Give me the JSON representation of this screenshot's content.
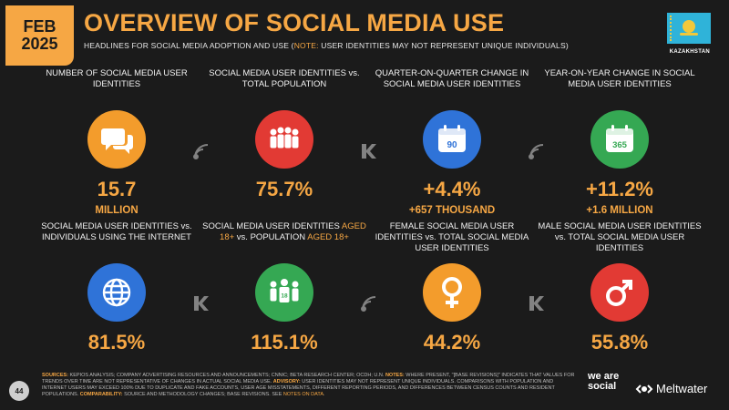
{
  "header": {
    "month": "FEB",
    "year": "2025",
    "title": "OVERVIEW OF SOCIAL MEDIA USE",
    "subtitle_main": "HEADLINES FOR SOCIAL MEDIA ADOPTION AND USE (",
    "subtitle_note": "NOTE:",
    "subtitle_rest": " USER IDENTITIES MAY NOT REPRESENT UNIQUE INDIVIDUALS)"
  },
  "country": {
    "label": "KAZAKHSTAN"
  },
  "stats": [
    {
      "label": "NUMBER OF SOCIAL MEDIA USER IDENTITIES",
      "value": "15.7",
      "sub": "MILLION",
      "icon": "chat-bubbles-icon",
      "color": "#f39c2c"
    },
    {
      "label": "SOCIAL MEDIA USER IDENTITIES vs. TOTAL POPULATION",
      "value": "75.7%",
      "sub": "",
      "icon": "people-group-icon",
      "color": "#e23a34"
    },
    {
      "label": "QUARTER-ON-QUARTER CHANGE IN SOCIAL MEDIA USER IDENTITIES",
      "value": "+4.4%",
      "sub": "+657 THOUSAND",
      "icon": "calendar-90-icon",
      "calendar_text": "90",
      "color": "#2f73d8"
    },
    {
      "label": "YEAR-ON-YEAR CHANGE IN SOCIAL MEDIA USER IDENTITIES",
      "value": "+11.2%",
      "sub": "+1.6 MILLION",
      "icon": "calendar-365-icon",
      "calendar_text": "365",
      "color": "#35a853"
    },
    {
      "label": "SOCIAL MEDIA USER IDENTITIES vs. INDIVIDUALS USING THE INTERNET",
      "value": "81.5%",
      "sub": "",
      "icon": "globe-icon",
      "color": "#2f73d8"
    },
    {
      "label_a": "SOCIAL MEDIA USER IDENTITIES ",
      "label_hl1": "AGED 18+",
      "label_b": " vs. POPULATION ",
      "label_hl2": "AGED 18+",
      "value": "115.1%",
      "sub": "",
      "icon": "adults-18-icon",
      "badge_text": "18",
      "color": "#35a853"
    },
    {
      "label": "FEMALE SOCIAL MEDIA USER IDENTITIES vs. TOTAL SOCIAL MEDIA USER IDENTITIES",
      "value": "44.2%",
      "sub": "",
      "icon": "female-symbol-icon",
      "color": "#f39c2c"
    },
    {
      "label": "MALE SOCIAL MEDIA USER IDENTITIES vs. TOTAL SOCIAL MEDIA USER IDENTITIES",
      "value": "55.8%",
      "sub": "",
      "icon": "male-symbol-icon",
      "color": "#e23a34"
    }
  ],
  "footer": {
    "sources_label": "SOURCES:",
    "sources_text": " KEPIOS ANALYSIS; COMPANY ADVERTISING RESOURCES AND ANNOUNCEMENTS; CNNIC; BETA RESEARCH CENTER; OCDH; U.N. ",
    "notes_label": "NOTES:",
    "notes_text": " WHERE PRESENT, \"[BASE REVISIONS]\" INDICATES THAT VALUES FOR TRENDS OVER TIME ARE NOT REPRESENTATIVE OF CHANGES IN ACTUAL SOCIAL MEDIA USE. ",
    "advisory_label": "ADVISORY:",
    "advisory_text": " USER IDENTITIES MAY NOT REPRESENT UNIQUE INDIVIDUALS. COMPARISONS WITH POPULATION AND INTERNET USERS MAY EXCEED 100% DUE TO DUPLICATE AND FAKE ACCOUNTS, USER AGE MISSTATEMENTS, DIFFERENT REPORTING PERIODS, AND DIFFERENCES BETWEEN CENSUS COUNTS AND RESIDENT POPULATIONS. ",
    "comparability_label": "COMPARABILITY:",
    "comparability_text": " SOURCE AND METHODOLOGY CHANGES; BASE REVISIONS. SEE ",
    "notes_link": "NOTES ON DATA",
    "end": "."
  },
  "page_number": "44",
  "brand": {
    "we_are_social": "we are social",
    "meltwater": "Meltwater"
  }
}
